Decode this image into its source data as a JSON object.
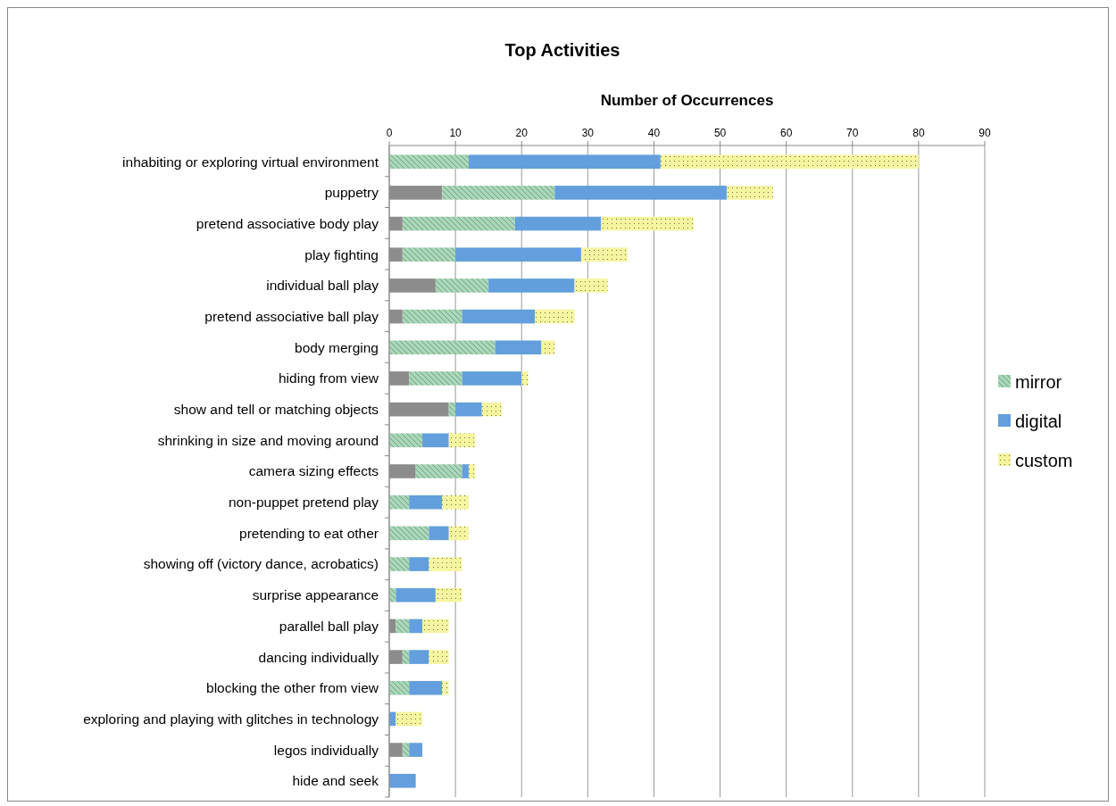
{
  "chart_data": {
    "type": "bar",
    "orientation": "horizontal",
    "stacked": true,
    "title": "Top Activities",
    "xlabel": "Number of Occurrences",
    "categories": [
      "inhabiting or exploring virtual environment",
      "puppetry",
      "pretend associative body play",
      "play fighting",
      "individual ball play",
      "pretend associative ball play",
      "body merging",
      "hiding from view",
      "show and tell or matching objects",
      "shrinking in size and moving around",
      "camera sizing effects",
      "non-puppet pretend play",
      "pretending to eat other",
      "showing off (victory dance, acrobatics)",
      "surprise appearance",
      "parallel ball play",
      "dancing individually",
      "blocking the other from view",
      "exploring and playing with glitches in technology",
      "legos individually",
      "hide and seek"
    ],
    "series": [
      {
        "color": "#8c8c8c",
        "values": [
          0,
          8,
          2,
          2,
          7,
          2,
          0,
          3,
          9,
          0,
          4,
          0,
          0,
          0,
          0,
          1,
          2,
          0,
          0,
          2,
          0
        ]
      },
      {
        "name": "mirror",
        "color": "#a8d8b8",
        "values": [
          12,
          17,
          17,
          8,
          8,
          9,
          16,
          8,
          1,
          5,
          7,
          3,
          6,
          3,
          1,
          2,
          1,
          3,
          0,
          1,
          0
        ]
      },
      {
        "name": "digital",
        "color": "#629fdc",
        "values": [
          29,
          26,
          13,
          19,
          13,
          11,
          7,
          9,
          4,
          4,
          1,
          5,
          3,
          3,
          6,
          2,
          3,
          5,
          1,
          2,
          4
        ]
      },
      {
        "name": "custom",
        "color": "#f5f5a0",
        "values": [
          39,
          7,
          14,
          7,
          5,
          6,
          2,
          1,
          3,
          4,
          1,
          4,
          3,
          5,
          4,
          4,
          3,
          1,
          4,
          0,
          0
        ]
      }
    ],
    "xlim": [
      0,
      90
    ],
    "xticks": [
      0,
      10,
      20,
      30,
      40,
      50,
      60,
      70,
      80,
      90
    ],
    "grid": "x",
    "legend": "right"
  }
}
